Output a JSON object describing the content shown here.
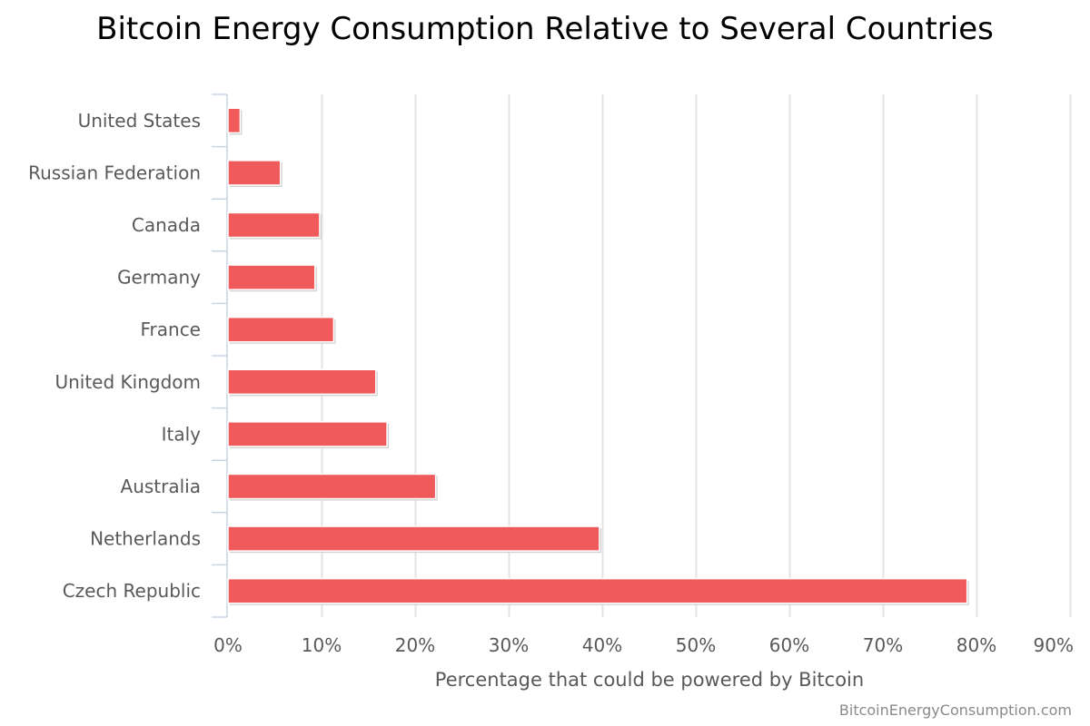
{
  "chart_data": {
    "type": "bar",
    "orientation": "horizontal",
    "title": "Bitcoin Energy Consumption Relative to Several Countries",
    "xlabel": "Percentage that could be powered by Bitcoin",
    "ylabel": "",
    "categories": [
      "United States",
      "Russian Federation",
      "Canada",
      "Germany",
      "France",
      "United Kingdom",
      "Italy",
      "Australia",
      "Netherlands",
      "Czech Republic"
    ],
    "values": [
      1.3,
      5.6,
      9.8,
      9.3,
      11.3,
      15.8,
      17.0,
      22.2,
      39.7,
      79.0
    ],
    "xlim": [
      0,
      90
    ],
    "x_ticks": [
      0,
      10,
      20,
      30,
      40,
      50,
      60,
      70,
      80,
      90
    ],
    "x_tick_labels": [
      "0%",
      "10%",
      "20%",
      "30%",
      "40%",
      "50%",
      "60%",
      "70%",
      "80%",
      "90%"
    ],
    "grid": true,
    "legend": "none",
    "bar_color": "#f05a5b"
  },
  "credit": "BitcoinEnergyConsumption.com"
}
